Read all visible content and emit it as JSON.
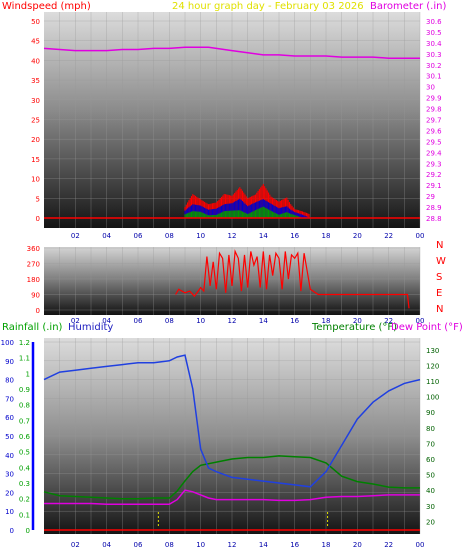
{
  "header": {
    "left": "Windspeed (mph)",
    "center": "24 hour graph day - February 03 2026",
    "right": "Barometer (.in)"
  },
  "colors": {
    "wind": "#ff0000",
    "gust": "#0000cc",
    "wind_green": "#009900",
    "barometer": "#e000e0",
    "direction": "#ff0000",
    "humidity": "#2040e0",
    "temperature": "#008000",
    "dewpoint": "#e000e0",
    "rain_axis": "#0000ff",
    "title": "#e0e000",
    "axis_red": "#ff0000",
    "grid": "#888888"
  },
  "x_axis": {
    "ticks": [
      "02",
      "04",
      "06",
      "08",
      "10",
      "12",
      "14",
      "16",
      "18",
      "20",
      "22",
      "00"
    ]
  },
  "chart_data": [
    {
      "type": "area",
      "id": "wind-barometer",
      "ylim_left": [
        0,
        50
      ],
      "ylim_right": [
        28.8,
        30.6
      ],
      "left_ticks": [
        "0",
        "5",
        "10",
        "15",
        "20",
        "25",
        "30",
        "35",
        "40",
        "45",
        "50"
      ],
      "right_ticks": [
        "28.8",
        "28.9",
        "29",
        "29.1",
        "29.2",
        "29.3",
        "29.4",
        "29.5",
        "29.6",
        "29.7",
        "29.8",
        "29.9",
        "30",
        "30.1",
        "30.2",
        "30.3",
        "30.4",
        "30.5",
        "30.6"
      ],
      "barometer": {
        "x": [
          0,
          1,
          2,
          3,
          4,
          5,
          6,
          7,
          8,
          9,
          10,
          10.5,
          11,
          12,
          13,
          14,
          15,
          16,
          17,
          18,
          19,
          20,
          21,
          22,
          23,
          24
        ],
        "y": [
          30.35,
          30.34,
          30.33,
          30.33,
          30.33,
          30.34,
          30.34,
          30.35,
          30.35,
          30.36,
          30.36,
          30.36,
          30.35,
          30.33,
          30.31,
          30.29,
          30.29,
          30.28,
          30.28,
          30.28,
          30.27,
          30.27,
          30.27,
          30.26,
          30.26,
          30.26
        ]
      },
      "wind_series": [
        {
          "name": "gust",
          "x": [
            9.0,
            9.5,
            10,
            10.5,
            11,
            11.5,
            12,
            12.5,
            13,
            13.5,
            14,
            14.5,
            15,
            15.5,
            16,
            16.5,
            17
          ],
          "y": [
            3,
            7,
            6,
            5,
            5,
            7,
            6,
            8,
            5,
            6,
            9,
            6,
            5,
            7,
            3,
            2,
            1
          ]
        },
        {
          "name": "average",
          "x": [
            9.0,
            9.5,
            10,
            10.5,
            11,
            11.5,
            12,
            12.5,
            13,
            13.5,
            14,
            14.5,
            15,
            15.5,
            16,
            16.5,
            17
          ],
          "y": [
            2,
            4,
            4,
            3,
            3,
            4,
            4,
            5,
            3,
            4,
            5,
            4,
            3,
            4,
            2,
            1,
            0
          ]
        },
        {
          "name": "calm",
          "x": [
            9.0,
            9.5,
            10,
            10.5,
            11,
            11.5,
            12,
            12.5,
            13,
            13.5,
            14,
            14.5,
            15,
            15.5,
            16,
            16.5,
            17
          ],
          "y": [
            1,
            2,
            2,
            1,
            1,
            2,
            2,
            2,
            1,
            2,
            3,
            2,
            1,
            2,
            1,
            0,
            0
          ]
        }
      ]
    },
    {
      "type": "line",
      "id": "wind-direction",
      "ylim": [
        0,
        360
      ],
      "left_ticks": [
        "0",
        "90",
        "180",
        "270",
        "360"
      ],
      "right_labels": [
        "N",
        "W",
        "S",
        "E",
        "N"
      ],
      "direction": {
        "x": [
          8.4,
          8.6,
          9,
          9.3,
          9.6,
          10,
          10.2,
          10.4,
          10.6,
          10.8,
          11,
          11.2,
          11.4,
          11.6,
          11.8,
          12,
          12.2,
          12.4,
          12.6,
          12.8,
          13,
          13.2,
          13.4,
          13.6,
          13.8,
          14,
          14.2,
          14.4,
          14.6,
          14.8,
          15,
          15.2,
          15.4,
          15.6,
          15.8,
          16,
          16.2,
          16.4,
          16.6,
          17,
          17.5,
          18,
          20,
          22,
          23.2,
          23.3
        ],
        "y": [
          90,
          120,
          100,
          110,
          80,
          130,
          110,
          310,
          140,
          280,
          120,
          330,
          300,
          100,
          320,
          140,
          340,
          300,
          110,
          320,
          130,
          340,
          260,
          310,
          130,
          340,
          120,
          320,
          200,
          330,
          300,
          120,
          340,
          180,
          320,
          300,
          330,
          110,
          330,
          120,
          90,
          90,
          90,
          90,
          90,
          10
        ]
      }
    },
    {
      "type": "line",
      "id": "humidity-temperature",
      "left_ticks": [
        "0",
        "10",
        "20",
        "30",
        "40",
        "50",
        "60",
        "70",
        "80",
        "90",
        "100"
      ],
      "rain_ticks": [
        "0",
        "0.1",
        "0.2",
        "0.3",
        "0.4",
        "0.5",
        "0.6",
        "0.7",
        "0.8",
        "0.9",
        "1",
        "1.1",
        "1.2"
      ],
      "right_ticks": [
        "20",
        "30",
        "40",
        "50",
        "60",
        "70",
        "80",
        "90",
        "100",
        "110",
        "120",
        "130"
      ],
      "ylim_left": [
        0,
        100
      ],
      "ylim_rain": [
        0,
        1.2
      ],
      "ylim_right": [
        14.5,
        135
      ],
      "humidity": {
        "x": [
          0,
          1,
          2,
          3,
          4,
          5,
          6,
          7,
          8,
          8.5,
          9,
          9.5,
          10,
          10.5,
          11,
          12,
          13,
          14,
          15,
          16,
          17,
          18,
          19,
          20,
          21,
          22,
          23,
          24
        ],
        "y": [
          80,
          84,
          85,
          86,
          87,
          88,
          89,
          89,
          90,
          92,
          93,
          75,
          43,
          33,
          31,
          28,
          27,
          26,
          25,
          24,
          23,
          31,
          45,
          59,
          68,
          74,
          78,
          80
        ]
      },
      "temperature": {
        "x": [
          0,
          1,
          2,
          3,
          4,
          5,
          6,
          7,
          8,
          8.5,
          9,
          9.5,
          10,
          11,
          12,
          13,
          14,
          15,
          16,
          17,
          18,
          19,
          20,
          21,
          22,
          23,
          24
        ],
        "y": [
          39,
          36.5,
          36,
          35.5,
          35,
          34.5,
          34.5,
          35,
          35,
          39.5,
          46,
          52,
          56,
          58,
          60,
          61,
          61,
          62,
          61.5,
          61,
          57.5,
          49,
          45.5,
          44,
          42,
          41.5,
          41.5
        ]
      },
      "dewpoint": {
        "x": [
          0,
          1,
          2,
          3,
          4,
          5,
          6,
          7,
          8,
          8.5,
          9,
          9.5,
          10,
          10.5,
          11,
          12,
          13,
          14,
          15,
          16,
          17,
          18,
          19,
          20,
          21,
          22,
          23,
          24
        ],
        "y": [
          31.5,
          31.5,
          31.5,
          31.5,
          31,
          31,
          31,
          31,
          31,
          34,
          40,
          39,
          37,
          35,
          34,
          34,
          34,
          34,
          33.5,
          33.5,
          34,
          35.5,
          36,
          36,
          36.5,
          37,
          37,
          37
        ]
      },
      "rain_markers": [
        7.3,
        18.1
      ]
    }
  ],
  "panel2_labels": {
    "N_top": "N",
    "W": "W",
    "S": "S",
    "E": "E",
    "N_bot": "N"
  },
  "panel3_header": {
    "rainfall": "Rainfall (.in)",
    "humidity": "Humidity",
    "temperature": "Temperature (°F)",
    "dewpoint": "Dew Point (°F)"
  }
}
